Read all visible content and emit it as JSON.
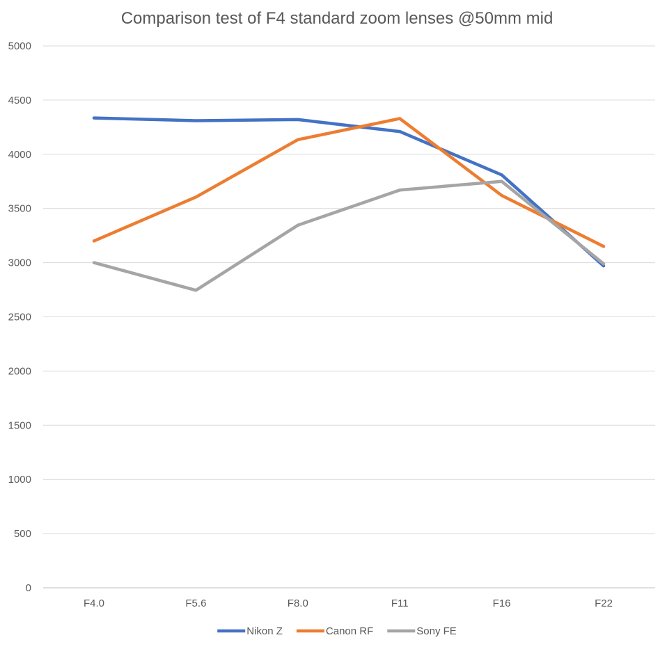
{
  "chart_data": {
    "type": "line",
    "title": "Comparison test of F4 standard zoom lenses @50mm mid",
    "xlabel": "",
    "ylabel": "",
    "categories": [
      "F4.0",
      "F5.6",
      "F8.0",
      "F11",
      "F16",
      "F22"
    ],
    "ylim": [
      0,
      5000
    ],
    "yticks": [
      0,
      500,
      1000,
      1500,
      2000,
      2500,
      3000,
      3500,
      4000,
      4500,
      5000
    ],
    "grid": true,
    "legend_position": "bottom",
    "series": [
      {
        "name": "Nikon Z",
        "color": "#4472c4",
        "values": [
          4335,
          4310,
          4320,
          4210,
          3810,
          2970
        ]
      },
      {
        "name": "Canon RF",
        "color": "#ed7d31",
        "values": [
          3200,
          3605,
          4135,
          4330,
          3620,
          3150
        ]
      },
      {
        "name": "Sony FE",
        "color": "#a5a5a5",
        "values": [
          3000,
          2745,
          3345,
          3670,
          3750,
          2990
        ]
      }
    ]
  }
}
